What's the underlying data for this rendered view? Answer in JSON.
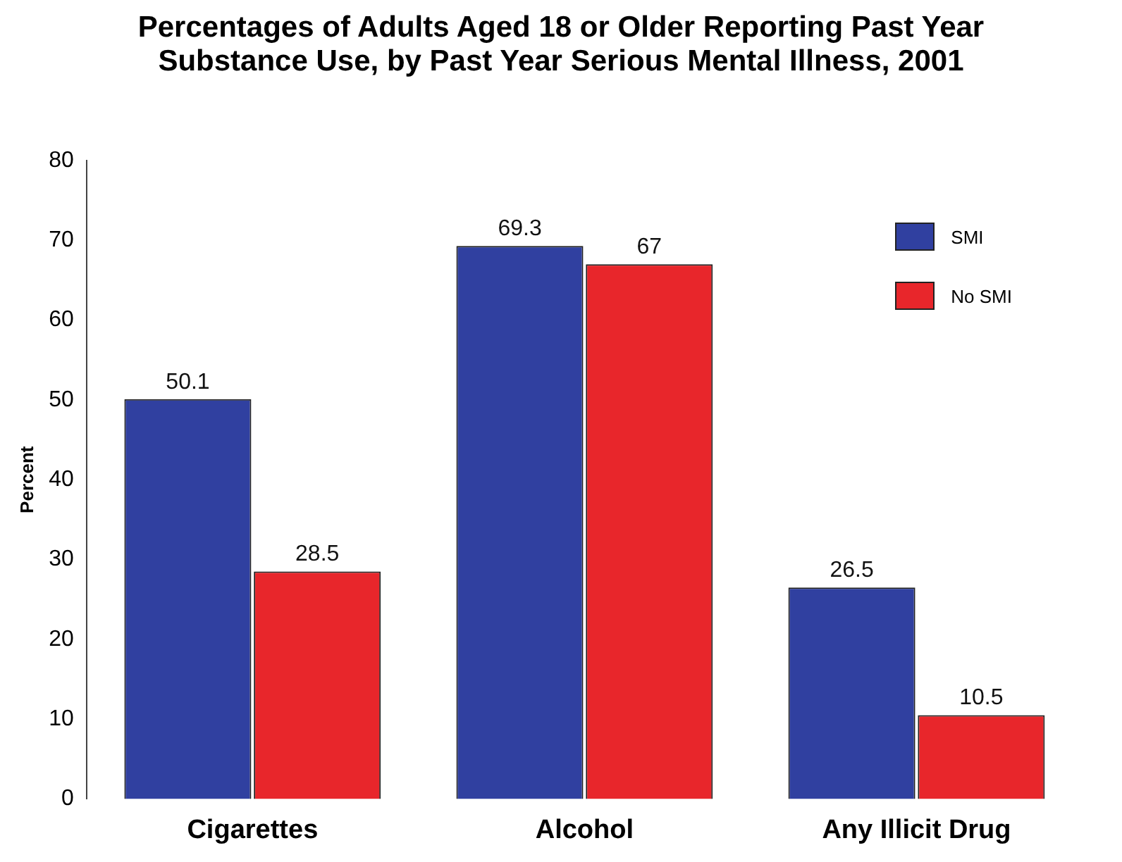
{
  "chart_data": {
    "type": "bar",
    "title": "Percentages of Adults Aged 18 or Older Reporting Past Year Substance Use, by Past Year Serious Mental Illness, 2001",
    "ylabel": "Percent",
    "categories": [
      "Cigarettes",
      "Alcohol",
      "Any Illicit Drug"
    ],
    "series": [
      {
        "name": "SMI",
        "color": "#3040a0",
        "values": [
          50.1,
          69.3,
          26.5
        ]
      },
      {
        "name": "No SMI",
        "color": "#e8262b",
        "values": [
          28.5,
          67,
          10.5
        ]
      }
    ],
    "ylim": [
      0,
      80
    ],
    "yticks": [
      0,
      10,
      20,
      30,
      40,
      50,
      60,
      70,
      80
    ],
    "grid": false,
    "legend": "top right",
    "data_labels": true
  }
}
